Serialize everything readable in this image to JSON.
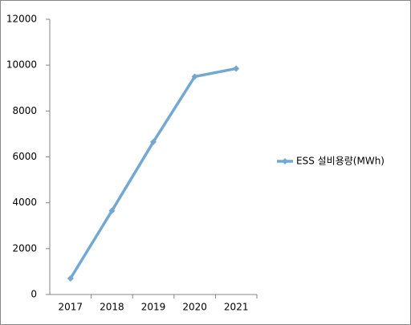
{
  "chart_data": {
    "type": "line",
    "categories": [
      "2017",
      "2018",
      "2019",
      "2020",
      "2021"
    ],
    "series": [
      {
        "name": "ESS 설비용량(MWh)",
        "color": "#71a9d3",
        "values": [
          700,
          3650,
          6650,
          9500,
          9850
        ]
      }
    ],
    "ylim": [
      0,
      12000
    ],
    "yticks": [
      0,
      2000,
      4000,
      6000,
      8000,
      10000,
      12000
    ],
    "grid": false,
    "legend": "right"
  }
}
